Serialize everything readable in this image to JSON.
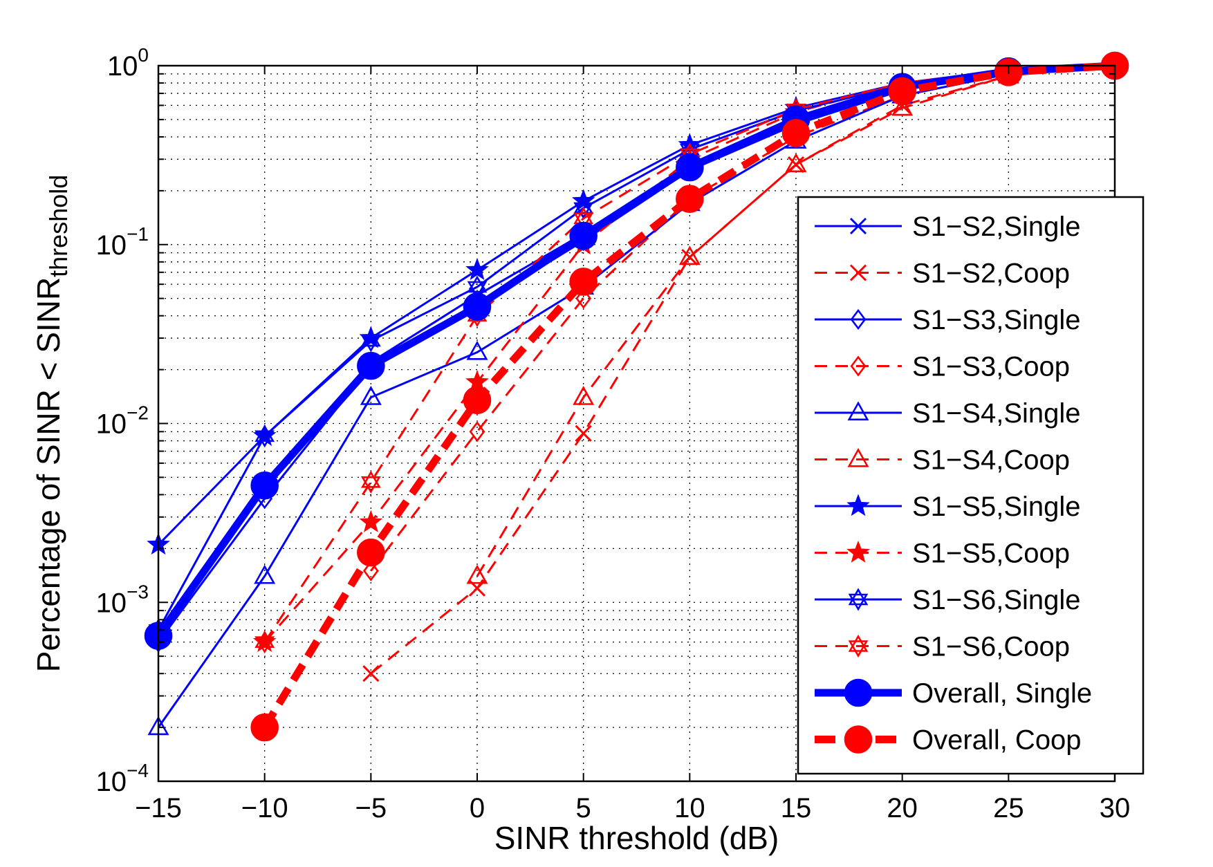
{
  "chart_data": {
    "type": "line",
    "title": "",
    "xlabel": "SINR threshold (dB)",
    "ylabel_main": "Percentage of SINR < SINR",
    "ylabel_sub": "threshold",
    "xlim": [
      -15,
      30
    ],
    "ylim": [
      0.0001,
      1
    ],
    "yscale": "log",
    "grid": true,
    "legend_position": "right",
    "x_ticks": [
      -15,
      -10,
      -5,
      0,
      5,
      10,
      15,
      20,
      25,
      30
    ],
    "x_tick_labels": [
      "−15",
      "−10",
      "−5",
      "0",
      "5",
      "10",
      "15",
      "20",
      "25",
      "30"
    ],
    "y_ticks": [
      {
        "value": 0.0001,
        "base": "10",
        "exp": "−4"
      },
      {
        "value": 0.001,
        "base": "10",
        "exp": "−3"
      },
      {
        "value": 0.01,
        "base": "10",
        "exp": "−2"
      },
      {
        "value": 0.1,
        "base": "10",
        "exp": "−1"
      },
      {
        "value": 1,
        "base": "10",
        "exp": "0"
      }
    ],
    "series": [
      {
        "name": "S1−S2,Single",
        "color": "#0000ff",
        "dash": "solid",
        "width": 3,
        "marker": "x",
        "msize": 11,
        "x": [
          -15,
          -10,
          -5,
          0,
          5,
          10,
          15,
          20,
          25,
          30
        ],
        "y": [
          0.00065,
          0.0045,
          0.022,
          0.052,
          0.115,
          0.28,
          0.5,
          0.75,
          0.93,
          1.0
        ]
      },
      {
        "name": "S1−S2,Coop",
        "color": "#ff0000",
        "dash": "dashed",
        "width": 3,
        "marker": "x",
        "msize": 11,
        "x": [
          -5,
          0,
          5,
          10,
          15,
          20,
          25,
          30
        ],
        "y": [
          0.0004,
          0.0012,
          0.0088,
          0.085,
          0.28,
          0.6,
          0.88,
          1.0
        ]
      },
      {
        "name": "S1−S3,Single",
        "color": "#0000ff",
        "dash": "solid",
        "width": 3,
        "marker": "diamond",
        "msize": 13,
        "x": [
          -15,
          -10,
          -5,
          0,
          5,
          10,
          15,
          20,
          25,
          30
        ],
        "y": [
          0.0006,
          0.0038,
          0.021,
          0.045,
          0.105,
          0.26,
          0.47,
          0.73,
          0.92,
          1.0
        ]
      },
      {
        "name": "S1−S3,Coop",
        "color": "#ff0000",
        "dash": "dashed",
        "width": 3,
        "marker": "diamond",
        "msize": 13,
        "x": [
          -5,
          0,
          5,
          10,
          15,
          20,
          25,
          30
        ],
        "y": [
          0.0015,
          0.009,
          0.05,
          0.18,
          0.4,
          0.68,
          0.9,
          1.0
        ]
      },
      {
        "name": "S1−S4,Single",
        "color": "#0000ff",
        "dash": "solid",
        "width": 3,
        "marker": "triangle",
        "msize": 14,
        "x": [
          -15,
          -10,
          -5,
          0,
          5,
          10,
          15,
          20,
          25,
          30
        ],
        "y": [
          0.0002,
          0.0014,
          0.014,
          0.025,
          0.058,
          0.17,
          0.38,
          0.68,
          0.9,
          1.0
        ]
      },
      {
        "name": "S1−S4,Coop",
        "color": "#ff0000",
        "dash": "dashed",
        "width": 3,
        "marker": "triangle",
        "msize": 14,
        "x": [
          0,
          5,
          10,
          15,
          20,
          25,
          30
        ],
        "y": [
          0.0014,
          0.014,
          0.085,
          0.28,
          0.58,
          0.88,
          1.0
        ]
      },
      {
        "name": "S1−S5,Single",
        "color": "#0000ff",
        "dash": "solid",
        "width": 3,
        "marker": "star",
        "msize": 14,
        "x": [
          -15,
          -10,
          -5,
          0,
          5,
          10,
          15,
          20,
          25,
          30
        ],
        "y": [
          0.0021,
          0.0085,
          0.03,
          0.072,
          0.175,
          0.36,
          0.58,
          0.8,
          0.95,
          1.0
        ]
      },
      {
        "name": "S1−S5,Coop",
        "color": "#ff0000",
        "dash": "dashed",
        "width": 3,
        "marker": "star",
        "msize": 14,
        "x": [
          -10,
          -5,
          0,
          5,
          10,
          15,
          20,
          25,
          30
        ],
        "y": [
          0.0006,
          0.0028,
          0.017,
          0.1,
          0.3,
          0.55,
          0.8,
          0.94,
          1.0
        ]
      },
      {
        "name": "S1−S6,Single",
        "color": "#0000ff",
        "dash": "solid",
        "width": 3,
        "marker": "hexagram",
        "msize": 14,
        "x": [
          -15,
          -10,
          -5,
          0,
          5,
          10,
          15,
          20,
          25,
          30
        ],
        "y": [
          0.0007,
          0.0085,
          0.029,
          0.058,
          0.16,
          0.34,
          0.56,
          0.78,
          0.94,
          1.0
        ]
      },
      {
        "name": "S1−S6,Coop",
        "color": "#ff0000",
        "dash": "dashed",
        "width": 3,
        "marker": "hexagram",
        "msize": 14,
        "x": [
          -10,
          -5,
          0,
          5,
          10,
          15,
          20,
          25,
          30
        ],
        "y": [
          0.0006,
          0.0047,
          0.04,
          0.14,
          0.32,
          0.57,
          0.8,
          0.94,
          1.0
        ]
      },
      {
        "name": "Overall, Single",
        "color": "#0000ff",
        "dash": "solid",
        "width": 11,
        "marker": "circle",
        "msize": 19,
        "x": [
          -15,
          -10,
          -5,
          0,
          5,
          10,
          15,
          20,
          25,
          30
        ],
        "y": [
          0.00065,
          0.0045,
          0.021,
          0.045,
          0.112,
          0.27,
          0.5,
          0.76,
          0.93,
          1.0
        ]
      },
      {
        "name": "Overall, Coop",
        "color": "#ff0000",
        "dash": "thickdash",
        "width": 11,
        "marker": "circle",
        "msize": 19,
        "x": [
          -10,
          -5,
          0,
          5,
          10,
          15,
          20,
          25,
          30
        ],
        "y": [
          0.0002,
          0.0019,
          0.0135,
          0.062,
          0.18,
          0.42,
          0.72,
          0.92,
          1.0
        ]
      }
    ]
  }
}
